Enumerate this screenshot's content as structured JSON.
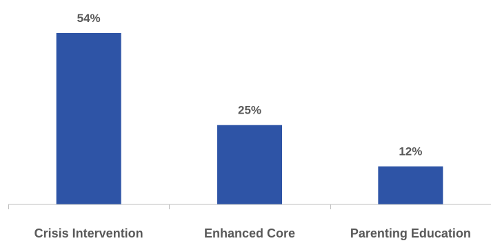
{
  "chart_data": {
    "type": "bar",
    "title": "",
    "xlabel": "",
    "ylabel": "",
    "categories": [
      "Crisis Intervention",
      "Enhanced Core",
      "Parenting Education"
    ],
    "values": [
      54,
      25,
      12
    ],
    "value_labels": [
      "54%",
      "25%",
      "12%"
    ],
    "unit": "%",
    "ylim": [
      0,
      58
    ],
    "grid": false,
    "legend": "none",
    "bar_color": "#2E54A6",
    "axis_color": "#BFBFBF",
    "label_color": "#595959"
  }
}
